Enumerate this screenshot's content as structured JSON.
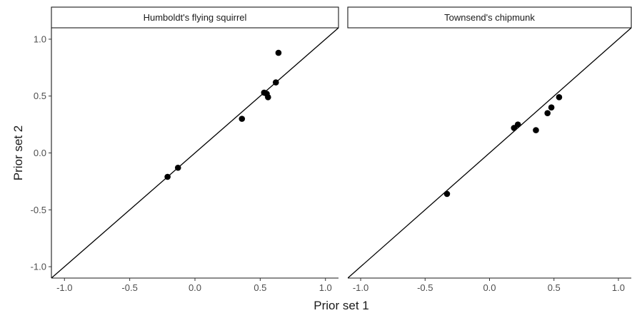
{
  "chart_data": {
    "type": "scatter",
    "xlabel": "Prior set 1",
    "ylabel": "Prior set 2",
    "xlim": [
      -1.1,
      1.1
    ],
    "ylim": [
      -1.1,
      1.1
    ],
    "x_ticks": [
      -1.0,
      -0.5,
      0.0,
      0.5,
      1.0
    ],
    "y_ticks": [
      -1.0,
      -0.5,
      0.0,
      0.5,
      1.0
    ],
    "x_tick_labels": [
      "-1.0",
      "-0.5",
      "0.0",
      "0.5",
      "1.0"
    ],
    "y_tick_labels": [
      "-1.0",
      "-0.5",
      "0.0",
      "0.5",
      "1.0"
    ],
    "reference_line": "y = x",
    "grid": false,
    "point_color": "#000000",
    "panels": [
      {
        "label": "Humboldt's flying squirrel",
        "x": [
          -0.21,
          -0.13,
          0.36,
          0.53,
          0.55,
          0.56,
          0.62,
          0.64
        ],
        "y": [
          -0.21,
          -0.13,
          0.3,
          0.53,
          0.52,
          0.49,
          0.62,
          0.88
        ]
      },
      {
        "label": "Townsend's chipmunk",
        "x": [
          -0.33,
          0.19,
          0.22,
          0.36,
          0.45,
          0.48,
          0.54
        ],
        "y": [
          -0.36,
          0.22,
          0.25,
          0.2,
          0.35,
          0.4,
          0.49
        ]
      }
    ]
  }
}
